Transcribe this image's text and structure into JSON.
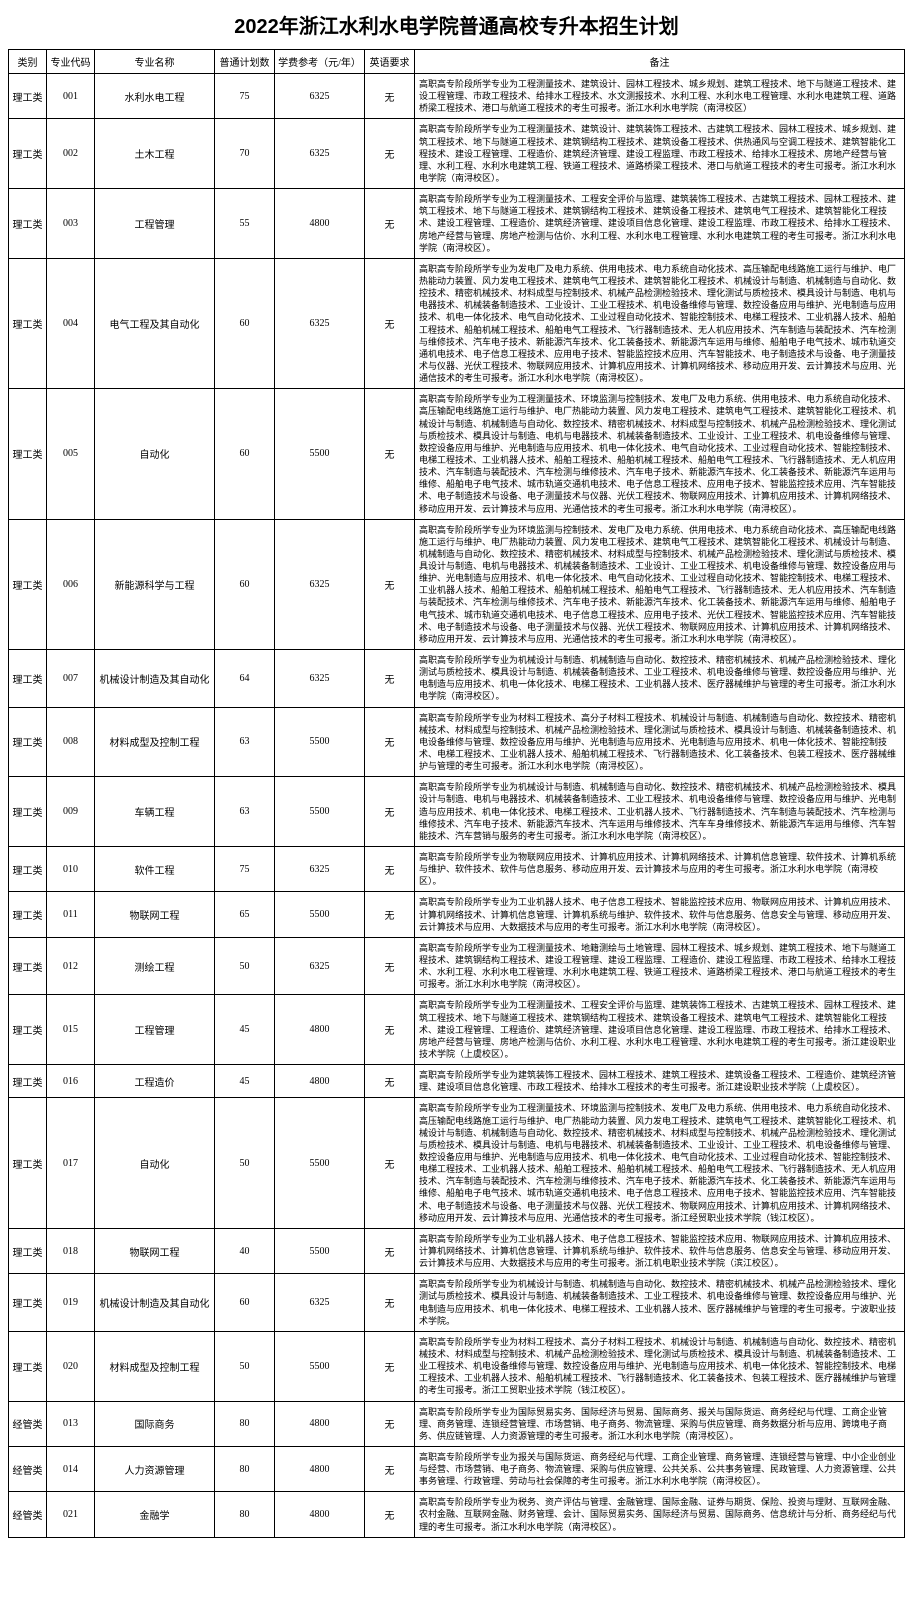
{
  "title": "2022年浙江水利水电学院普通高校专升本招生计划",
  "headers": {
    "category": "类别",
    "code": "专业代码",
    "name": "专业名称",
    "plan": "普通计划数",
    "fee": "学费参考（元/年）",
    "english": "英语要求",
    "remark": "备注"
  },
  "rows": [
    {
      "category": "理工类",
      "code": "001",
      "name": "水利水电工程",
      "plan": "75",
      "fee": "6325",
      "english": "无",
      "remark": "高职高专阶段所学专业为工程测量技术、建筑设计、园林工程技术、城乡规划、建筑工程技术、地下与隧道工程技术、建设工程管理、市政工程技术、给排水工程技术、水文测报技术、水利工程、水利水电工程管理、水利水电建筑工程、道路桥梁工程技术、港口与航道工程技术的考生可报考。浙江水利水电学院（南浔校区）"
    },
    {
      "category": "理工类",
      "code": "002",
      "name": "土木工程",
      "plan": "70",
      "fee": "6325",
      "english": "无",
      "remark": "高职高专阶段所学专业为工程测量技术、建筑设计、建筑装饰工程技术、古建筑工程技术、园林工程技术、城乡规划、建筑工程技术、地下与隧道工程技术、建筑钢结构工程技术、建筑设备工程技术、供热通风与空调工程技术、建筑智能化工程技术、建设工程管理、工程造价、建筑经济管理、建设工程监理、市政工程技术、给排水工程技术、房地产经营与管理、水利工程、水利水电建筑工程、铁道工程技术、道路桥梁工程技术、港口与航道工程技术的考生可报考。浙江水利水电学院（南浔校区）。"
    },
    {
      "category": "理工类",
      "code": "003",
      "name": "工程管理",
      "plan": "55",
      "fee": "4800",
      "english": "无",
      "remark": "高职高专阶段所学专业为工程测量技术、工程安全评价与监理、建筑装饰工程技术、古建筑工程技术、园林工程技术、建筑工程技术、地下与隧道工程技术、建筑钢结构工程技术、建筑设备工程技术、建筑电气工程技术、建筑智能化工程技术、建设工程管理、工程造价、建筑经济管理、建设项目信息化管理、建设工程监理、市政工程技术、给排水工程技术、房地产经营与管理、房地产检测与估价、水利工程、水利水电工程管理、水利水电建筑工程的考生可报考。浙江水利水电学院（南浔校区）。"
    },
    {
      "category": "理工类",
      "code": "004",
      "name": "电气工程及其自动化",
      "plan": "60",
      "fee": "6325",
      "english": "无",
      "remark": "高职高专阶段所学专业为发电厂及电力系统、供用电技术、电力系统自动化技术、高压输配电线路施工运行与维护、电厂热能动力装置、风力发电工程技术、建筑电气工程技术、建筑智能化工程技术、机械设计与制造、机械制造与自动化、数控技术、精密机械技术、材料成型与控制技术、机械产品检测检验技术、理化测试与质检技术、模具设计与制造、电机与电器技术、机械装备制造技术、工业设计、工业工程技术、机电设备维修与管理、数控设备应用与维护、光电制造与应用技术、机电一体化技术、电气自动化技术、工业过程自动化技术、智能控制技术、电梯工程技术、工业机器人技术、船舶工程技术、船舶机械工程技术、船舶电气工程技术、飞行器制造技术、无人机应用技术、汽车制造与装配技术、汽车检测与维修技术、汽车电子技术、新能源汽车技术、化工装备技术、新能源汽车运用与维修、船舶电子电气技术、城市轨道交通机电技术、电子信息工程技术、应用电子技术、智能监控技术应用、汽车智能技术、电子制造技术与设备、电子测量技术与仪器、光伏工程技术、物联网应用技术、计算机应用技术、计算机网络技术、移动应用开发、云计算技术与应用、光通信技术的考生可报考。浙江水利水电学院（南浔校区）。"
    },
    {
      "category": "理工类",
      "code": "005",
      "name": "自动化",
      "plan": "60",
      "fee": "5500",
      "english": "无",
      "remark": "高职高专阶段所学专业为工程测量技术、环境监测与控制技术、发电厂及电力系统、供用电技术、电力系统自动化技术、高压输配电线路施工运行与维护、电厂热能动力装置、风力发电工程技术、建筑电气工程技术、建筑智能化工程技术、机械设计与制造、机械制造与自动化、数控技术、精密机械技术、材料成型与控制技术、机械产品检测检验技术、理化测试与质检技术、模具设计与制造、电机与电器技术、机械装备制造技术、工业设计、工业工程技术、机电设备维修与管理、数控设备应用与维护、光电制造与应用技术、机电一体化技术、电气自动化技术、工业过程自动化技术、智能控制技术、电梯工程技术、工业机器人技术、船舶工程技术、船舶机械工程技术、船舶电气工程技术、飞行器制造技术、无人机应用技术、汽车制造与装配技术、汽车检测与维修技术、汽车电子技术、新能源汽车技术、化工装备技术、新能源汽车运用与维修、船舶电子电气技术、城市轨道交通机电技术、电子信息工程技术、应用电子技术、智能监控技术应用、汽车智能技术、电子制造技术与设备、电子测量技术与仪器、光伏工程技术、物联网应用技术、计算机应用技术、计算机网络技术、移动应用开发、云计算技术与应用、光通信技术的考生可报考。浙江水利水电学院（南浔校区）。"
    },
    {
      "category": "理工类",
      "code": "006",
      "name": "新能源科学与工程",
      "plan": "60",
      "fee": "6325",
      "english": "无",
      "remark": "高职高专阶段所学专业为环境监测与控制技术、发电厂及电力系统、供用电技术、电力系统自动化技术、高压输配电线路施工运行与维护、电厂热能动力装置、风力发电工程技术、建筑电气工程技术、建筑智能化工程技术、机械设计与制造、机械制造与自动化、数控技术、精密机械技术、材料成型与控制技术、机械产品检测检验技术、理化测试与质检技术、模具设计与制造、电机与电器技术、机械装备制造技术、工业设计、工业工程技术、机电设备维修与管理、数控设备应用与维护、光电制造与应用技术、机电一体化技术、电气自动化技术、工业过程自动化技术、智能控制技术、电梯工程技术、工业机器人技术、船舶工程技术、船舶机械工程技术、船舶电气工程技术、飞行器制造技术、无人机应用技术、汽车制造与装配技术、汽车检测与维修技术、汽车电子技术、新能源汽车技术、化工装备技术、新能源汽车运用与维修、船舶电子电气技术、城市轨道交通机电技术、电子信息工程技术、应用电子技术、光伏工程技术、智能监控技术应用、汽车智能技术、电子制造技术与设备、电子测量技术与仪器、光伏工程技术、物联网应用技术、计算机应用技术、计算机网络技术、移动应用开发、云计算技术与应用、光通信技术的考生可报考。浙江水利水电学院（南浔校区）。"
    },
    {
      "category": "理工类",
      "code": "007",
      "name": "机械设计制造及其自动化",
      "plan": "64",
      "fee": "6325",
      "english": "无",
      "remark": "高职高专阶段所学专业为机械设计与制造、机械制造与自动化、数控技术、精密机械技术、机械产品检测检验技术、理化测试与质检技术、模具设计与制造、机械装备制造技术、工业工程技术、机电设备维修与管理、数控设备应用与维护、光电制造与应用技术、机电一体化技术、电梯工程技术、工业机器人技术、医疗器械维护与管理的考生可报考。浙江水利水电学院（南浔校区）。"
    },
    {
      "category": "理工类",
      "code": "008",
      "name": "材料成型及控制工程",
      "plan": "63",
      "fee": "5500",
      "english": "无",
      "remark": "高职高专阶段所学专业为材料工程技术、高分子材料工程技术、机械设计与制造、机械制造与自动化、数控技术、精密机械技术、材料成型与控制技术、机械产品检测检验技术、理化测试与质检技术、模具设计与制造、机械装备制造技术、机电设备维修与管理、数控设备应用与维护、光电制造与应用技术、光电制造与应用技术、机电一体化技术、智能控制技术、电梯工程技术、工业机器人技术、船舶机械工程技术、飞行器制造技术、化工装备技术、包装工程技术、医疗器械维护与管理的考生可报考。浙江水利水电学院（南浔校区）。"
    },
    {
      "category": "理工类",
      "code": "009",
      "name": "车辆工程",
      "plan": "63",
      "fee": "5500",
      "english": "无",
      "remark": "高职高专阶段所学专业为机械设计与制造、机械制造与自动化、数控技术、精密机械技术、机械产品检测检验技术、模具设计与制造、电机与电器技术、机械装备制造技术、工业工程技术、机电设备维修与管理、数控设备应用与维护、光电制造与应用技术、机电一体化技术、电梯工程技术、工业机器人技术、飞行器制造技术、汽车制造与装配技术、汽车检测与维修技术、汽车电子技术、新能源汽车技术、汽车运用与维修技术、汽车车身维修技术、新能源汽车运用与维修、汽车智能技术、汽车营销与服务的考生可报考。浙江水利水电学院（南浔校区）。"
    },
    {
      "category": "理工类",
      "code": "010",
      "name": "软件工程",
      "plan": "75",
      "fee": "6325",
      "english": "无",
      "remark": "高职高专阶段所学专业为物联网应用技术、计算机应用技术、计算机网络技术、计算机信息管理、软件技术、计算机系统与维护、软件技术、软件与信息服务、移动应用开发、云计算技术与应用的考生可报考。浙江水利水电学院（南浔校区）。"
    },
    {
      "category": "理工类",
      "code": "011",
      "name": "物联网工程",
      "plan": "65",
      "fee": "5500",
      "english": "无",
      "remark": "高职高专阶段所学专业为工业机器人技术、电子信息工程技术、智能监控技术应用、物联网应用技术、计算机应用技术、计算机网络技术、计算机信息管理、计算机系统与维护、软件技术、软件与信息服务、信息安全与管理、移动应用开发、云计算技术与应用、大数据技术与应用的考生可报考。浙江水利水电学院（南浔校区）。"
    },
    {
      "category": "理工类",
      "code": "012",
      "name": "测绘工程",
      "plan": "50",
      "fee": "6325",
      "english": "无",
      "remark": "高职高专阶段所学专业为工程测量技术、地籍测绘与土地管理、园林工程技术、城乡规划、建筑工程技术、地下与隧道工程技术、建筑钢结构工程技术、建设工程管理、建设工程监理、工程造价、建设工程监理、市政工程技术、给排水工程技术、水利工程、水利水电工程管理、水利水电建筑工程、铁道工程技术、道路桥梁工程技术、港口与航道工程技术的考生可报考。浙江水利水电学院（南浔校区）。"
    },
    {
      "category": "理工类",
      "code": "015",
      "name": "工程管理",
      "plan": "45",
      "fee": "4800",
      "english": "无",
      "remark": "高职高专阶段所学专业为工程测量技术、工程安全评价与监理、建筑装饰工程技术、古建筑工程技术、园林工程技术、建筑工程技术、地下与隧道工程技术、建筑钢结构工程技术、建筑设备工程技术、建筑电气工程技术、建筑智能化工程技术、建设工程管理、工程造价、建筑经济管理、建设项目信息化管理、建设工程监理、市政工程技术、给排水工程技术、房地产经营与管理、房地产检测与估价、水利工程、水利水电工程管理、水利水电建筑工程的考生可报考。浙江建设职业技术学院（上虞校区）。"
    },
    {
      "category": "理工类",
      "code": "016",
      "name": "工程造价",
      "plan": "45",
      "fee": "4800",
      "english": "无",
      "remark": "高职高专阶段所学专业为建筑装饰工程技术、园林工程技术、建筑工程技术、建筑设备工程技术、工程造价、建筑经济管理、建设项目信息化管理、市政工程技术、给排水工程技术的考生可报考。浙江建设职业技术学院（上虞校区）。"
    },
    {
      "category": "理工类",
      "code": "017",
      "name": "自动化",
      "plan": "50",
      "fee": "5500",
      "english": "无",
      "remark": "高职高专阶段所学专业为工程测量技术、环境监测与控制技术、发电厂及电力系统、供用电技术、电力系统自动化技术、高压输配电线路施工运行与维护、电厂热能动力装置、风力发电工程技术、建筑电气工程技术、建筑智能化工程技术、机械设计与制造、机械制造与自动化、数控技术、精密机械技术、材料成型与控制技术、机械产品检测检验技术、理化测试与质检技术、模具设计与制造、电机与电器技术、机械装备制造技术、工业设计、工业工程技术、机电设备维修与管理、数控设备应用与维护、光电制造与应用技术、机电一体化技术、电气自动化技术、工业过程自动化技术、智能控制技术、电梯工程技术、工业机器人技术、船舶工程技术、船舶机械工程技术、船舶电气工程技术、飞行器制造技术、无人机应用技术、汽车制造与装配技术、汽车检测与维修技术、汽车电子技术、新能源汽车技术、化工装备技术、新能源汽车运用与维修、船舶电子电气技术、城市轨道交通机电技术、电子信息工程技术、应用电子技术、智能监控技术应用、汽车智能技术、电子制造技术与设备、电子测量技术与仪器、光伏工程技术、物联网应用技术、计算机应用技术、计算机网络技术、移动应用开发、云计算技术与应用、光通信技术的考生可报考。浙江经贸职业技术学院（钱江校区）。"
    },
    {
      "category": "理工类",
      "code": "018",
      "name": "物联网工程",
      "plan": "40",
      "fee": "5500",
      "english": "无",
      "remark": "高职高专阶段所学专业为工业机器人技术、电子信息工程技术、智能监控技术应用、物联网应用技术、计算机应用技术、计算机网络技术、计算机信息管理、计算机系统与维护、软件技术、软件与信息服务、信息安全与管理、移动应用开发、云计算技术与应用、大数据技术与应用的考生可报考。浙江机电职业技术学院（滨江校区）。"
    },
    {
      "category": "理工类",
      "code": "019",
      "name": "机械设计制造及其自动化",
      "plan": "60",
      "fee": "6325",
      "english": "无",
      "remark": "高职高专阶段所学专业为机械设计与制造、机械制造与自动化、数控技术、精密机械技术、机械产品检测检验技术、理化测试与质检技术、模具设计与制造、机械装备制造技术、工业工程技术、机电设备维修与管理、数控设备应用与维护、光电制造与应用技术、机电一体化技术、电梯工程技术、工业机器人技术、医疗器械维护与管理的考生可报考。宁波职业技术学院。"
    },
    {
      "category": "理工类",
      "code": "020",
      "name": "材料成型及控制工程",
      "plan": "50",
      "fee": "5500",
      "english": "无",
      "remark": "高职高专阶段所学专业为材料工程技术、高分子材料工程技术、机械设计与制造、机械制造与自动化、数控技术、精密机械技术、材料成型与控制技术、机械产品检测检验技术、理化测试与质检技术、模具设计与制造、机械装备制造技术、工业工程技术、机电设备维修与管理、数控设备应用与维护、光电制造与应用技术、机电一体化技术、智能控制技术、电梯工程技术、工业机器人技术、船舶机械工程技术、飞行器制造技术、化工装备技术、包装工程技术、医疗器械维护与管理的考生可报考。浙江工贸职业技术学院（钱江校区）。"
    },
    {
      "category": "经管类",
      "code": "013",
      "name": "国际商务",
      "plan": "80",
      "fee": "4800",
      "english": "无",
      "remark": "高职高专阶段所学专业为国际贸易实务、国际经济与贸易、国际商务、报关与国际货运、商务经纪与代理、工商企业管理、商务管理、连锁经营管理、市场营销、电子商务、物流管理、采购与供应管理、商务数据分析与应用、跨境电子商务、供应链管理、人力资源管理的考生可报考。浙江水利水电学院（南浔校区）。"
    },
    {
      "category": "经管类",
      "code": "014",
      "name": "人力资源管理",
      "plan": "80",
      "fee": "4800",
      "english": "无",
      "remark": "高职高专阶段所学专业为报关与国际货运、商务经纪与代理、工商企业管理、商务管理、连锁经营与管理、中小企业创业与经营、市场营销、电子商务、物流管理、采购与供应管理、公共关系、公共事务管理、民政管理、人力资源管理、公共事务管理、行政管理、劳动与社会保障的考生可报考。浙江水利水电学院（南浔校区）。"
    },
    {
      "category": "经管类",
      "code": "021",
      "name": "金融学",
      "plan": "80",
      "fee": "4800",
      "english": "无",
      "remark": "高职高专阶段所学专业为税务、资产评估与管理、金融管理、国际金融、证券与期货、保险、投资与理财、互联网金融、农村金融、互联网金融、财务管理、会计、国际贸易实务、国际经济与贸易、国际商务、信息统计与分析、商务经纪与代理的考生可报考。浙江水利水电学院（南浔校区）。"
    }
  ]
}
